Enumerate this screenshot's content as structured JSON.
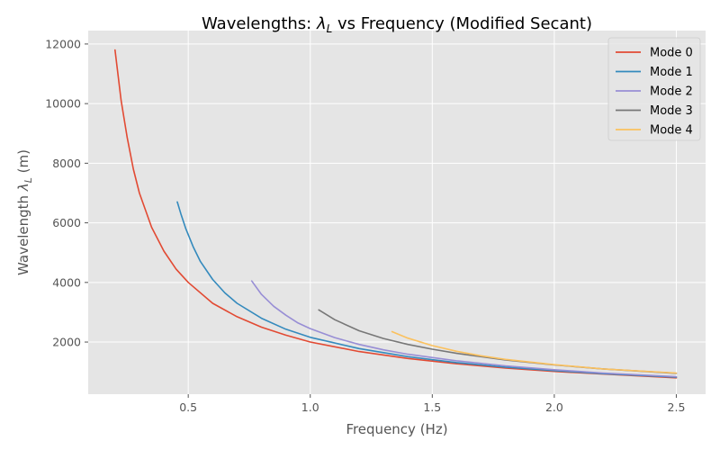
{
  "chart_data": {
    "type": "line",
    "title_prefix": "Wavelengths: ",
    "title_math": "λ",
    "title_math_sub": "L",
    "title_suffix": " vs Frequency (Modified Secant)",
    "xlabel": "Frequency (Hz)",
    "ylabel_prefix": "Wavelength ",
    "ylabel_math": "λ",
    "ylabel_math_sub": "L",
    "ylabel_suffix": " (m)",
    "xlim": [
      0.09,
      2.62
    ],
    "ylim": [
      250,
      12450
    ],
    "xticks": [
      0.5,
      1.0,
      1.5,
      2.0,
      2.5
    ],
    "xtick_labels": [
      "0.5",
      "1.0",
      "1.5",
      "2.0",
      "2.5"
    ],
    "yticks": [
      2000,
      4000,
      6000,
      8000,
      10000,
      12000
    ],
    "ytick_labels": [
      "2000",
      "4000",
      "6000",
      "8000",
      "10000",
      "12000"
    ],
    "grid": true,
    "legend_position": "top-right",
    "series": [
      {
        "name": "Mode 0",
        "color": "#E24A33",
        "x": [
          0.2,
          0.225,
          0.25,
          0.275,
          0.3,
          0.35,
          0.4,
          0.45,
          0.5,
          0.6,
          0.7,
          0.8,
          0.9,
          1.0,
          1.2,
          1.4,
          1.6,
          1.8,
          2.0,
          2.2,
          2.5
        ],
        "y": [
          11800,
          10100,
          8850,
          7800,
          7000,
          5850,
          5050,
          4450,
          4000,
          3300,
          2850,
          2500,
          2230,
          2000,
          1680,
          1450,
          1270,
          1130,
          1015,
          925,
          800
        ]
      },
      {
        "name": "Mode 1",
        "color": "#348ABD",
        "x": [
          0.455,
          0.47,
          0.49,
          0.52,
          0.55,
          0.6,
          0.65,
          0.7,
          0.8,
          0.9,
          1.0,
          1.2,
          1.4,
          1.6,
          1.8,
          2.0,
          2.2,
          2.5
        ],
        "y": [
          6700,
          6300,
          5800,
          5200,
          4700,
          4100,
          3650,
          3300,
          2800,
          2430,
          2160,
          1780,
          1510,
          1310,
          1160,
          1040,
          940,
          820
        ]
      },
      {
        "name": "Mode 2",
        "color": "#988ED5",
        "x": [
          0.76,
          0.8,
          0.85,
          0.9,
          0.95,
          1.0,
          1.1,
          1.2,
          1.3,
          1.4,
          1.6,
          1.8,
          2.0,
          2.2,
          2.5
        ],
        "y": [
          4050,
          3600,
          3200,
          2900,
          2640,
          2450,
          2150,
          1920,
          1740,
          1590,
          1370,
          1200,
          1070,
          960,
          840
        ]
      },
      {
        "name": "Mode 3",
        "color": "#777777",
        "x": [
          1.035,
          1.1,
          1.2,
          1.3,
          1.4,
          1.5,
          1.6,
          1.8,
          2.0,
          2.2,
          2.5
        ],
        "y": [
          3080,
          2750,
          2380,
          2120,
          1920,
          1760,
          1620,
          1400,
          1230,
          1100,
          950
        ]
      },
      {
        "name": "Mode 4",
        "color": "#FBC15E",
        "x": [
          1.335,
          1.4,
          1.5,
          1.6,
          1.7,
          1.8,
          2.0,
          2.2,
          2.5
        ],
        "y": [
          2350,
          2130,
          1880,
          1690,
          1540,
          1420,
          1240,
          1100,
          960
        ]
      }
    ]
  }
}
